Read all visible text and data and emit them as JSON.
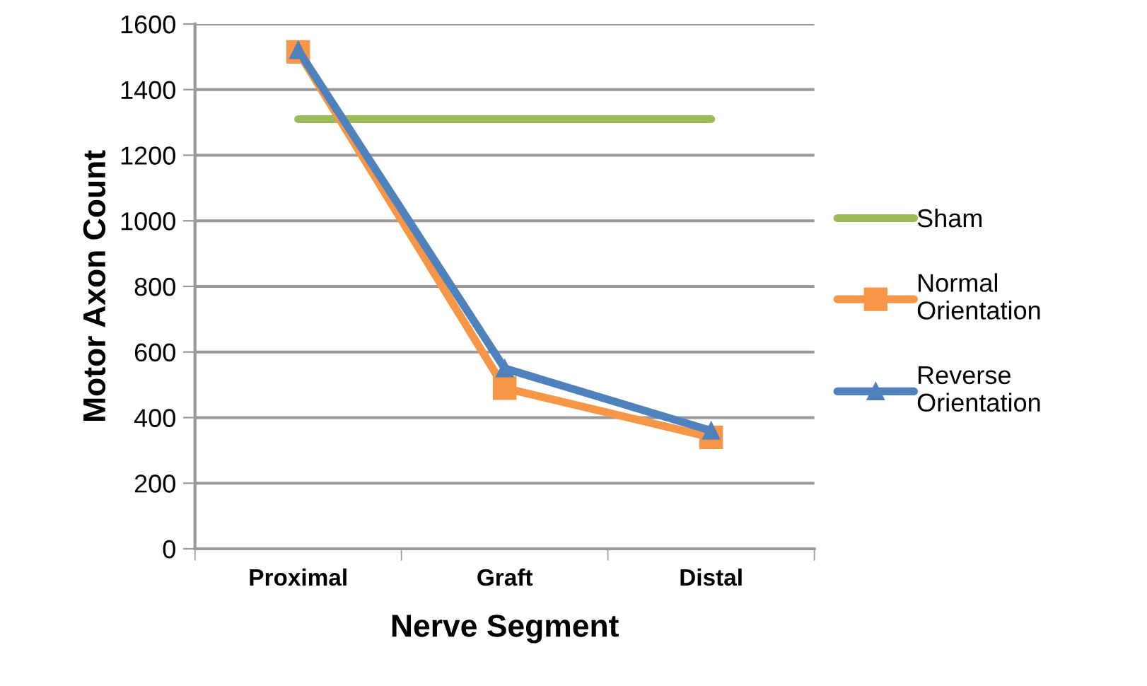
{
  "chart_data": {
    "type": "line",
    "xlabel": "Nerve Segment",
    "ylabel": "Motor Axon Count",
    "categories": [
      "Proximal",
      "Graft",
      "Distal"
    ],
    "series": [
      {
        "name": "Sham",
        "color": "#9bbb59",
        "values": [
          1310,
          1310,
          1310
        ],
        "marker": "none"
      },
      {
        "name": "Normal Orientation",
        "color": "#f79646",
        "values": [
          1515,
          490,
          340
        ],
        "marker": "square"
      },
      {
        "name": "Reverse Orientation",
        "color": "#4f81bd",
        "values": [
          1520,
          550,
          360
        ],
        "marker": "triangle"
      }
    ],
    "ylim": [
      0,
      1600
    ],
    "yticks": [
      0,
      200,
      400,
      600,
      800,
      1000,
      1200,
      1400,
      1600
    ],
    "grid": "y",
    "legend": "right"
  }
}
